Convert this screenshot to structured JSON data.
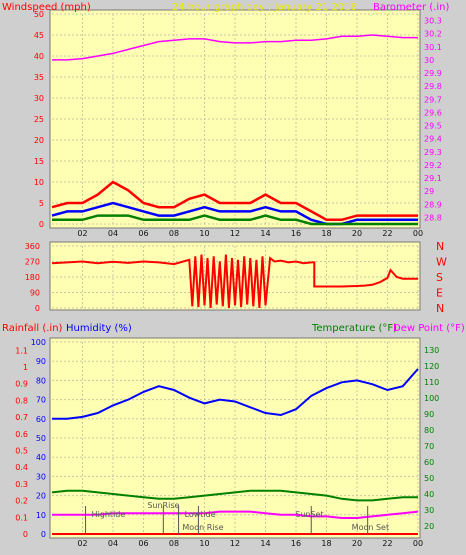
{
  "header": {
    "windspeed_label": "Windspeed (mph)",
    "center_title": "24 hour graph day : January 21 2018",
    "barometer_label": "Barometer (.in)"
  },
  "colors": {
    "panel_bg": "#ffffb4",
    "outer_bg": "#cfcfcf",
    "grid": "#c8c8a0",
    "wind_gust": "#ff0000",
    "wind_avg": "#0000ff",
    "wind_low": "#008000",
    "barometer": "#ff00ff",
    "direction": "#ff0000",
    "humidity": "#0000ff",
    "temperature": "#008000",
    "dew_point": "#ff00ff",
    "rainfall": "#ff0000",
    "events": "#555555",
    "title": "#e8e800"
  },
  "chart_data": [
    {
      "type": "line",
      "name": "wind-barometer",
      "x_ticks": [
        "02",
        "04",
        "06",
        "08",
        "10",
        "12",
        "14",
        "16",
        "18",
        "20",
        "22",
        "00"
      ],
      "left_axis": {
        "label": "Windspeed (mph)",
        "ticks": [
          "0",
          "5",
          "10",
          "15",
          "20",
          "25",
          "30",
          "35",
          "40",
          "45",
          "50"
        ],
        "ylim": [
          0,
          50
        ]
      },
      "right_axis": {
        "label": "Barometer (.in)",
        "ticks": [
          "28.8",
          "28.9",
          "29",
          "29.1",
          "29.2",
          "29.3",
          "29.4",
          "29.5",
          "29.6",
          "29.7",
          "29.8",
          "29.9",
          "30",
          "30.1",
          "30.2",
          "30.3"
        ],
        "ylim": [
          28.75,
          30.35
        ]
      },
      "series": [
        {
          "name": "Barometer",
          "axis": "right",
          "x": [
            0,
            1,
            2,
            3,
            4,
            5,
            6,
            7,
            8,
            9,
            10,
            11,
            12,
            13,
            14,
            15,
            16,
            17,
            18,
            19,
            20,
            21,
            22,
            23,
            24
          ],
          "values": [
            30.0,
            30.0,
            30.01,
            30.03,
            30.05,
            30.08,
            30.11,
            30.14,
            30.15,
            30.16,
            30.16,
            30.14,
            30.13,
            30.13,
            30.14,
            30.14,
            30.15,
            30.15,
            30.16,
            30.18,
            30.18,
            30.19,
            30.18,
            30.17,
            30.17
          ]
        },
        {
          "name": "Wind gust",
          "axis": "left",
          "x": [
            0,
            1,
            2,
            3,
            4,
            5,
            6,
            7,
            8,
            9,
            10,
            11,
            12,
            13,
            14,
            15,
            16,
            17,
            18,
            19,
            20,
            21,
            22,
            23,
            24
          ],
          "values": [
            4,
            5,
            5,
            7,
            10,
            8,
            5,
            4,
            4,
            6,
            7,
            5,
            5,
            5,
            7,
            5,
            5,
            3,
            1,
            1,
            2,
            2,
            2,
            2,
            2
          ]
        },
        {
          "name": "Wind average",
          "axis": "left",
          "x": [
            0,
            1,
            2,
            3,
            4,
            5,
            6,
            7,
            8,
            9,
            10,
            11,
            12,
            13,
            14,
            15,
            16,
            17,
            18,
            19,
            20,
            21,
            22,
            23,
            24
          ],
          "values": [
            2,
            3,
            3,
            4,
            5,
            4,
            3,
            2,
            2,
            3,
            4,
            3,
            3,
            3,
            4,
            3,
            3,
            1,
            0,
            0,
            1,
            1,
            1,
            1,
            1
          ]
        },
        {
          "name": "Wind low",
          "axis": "left",
          "x": [
            0,
            1,
            2,
            3,
            4,
            5,
            6,
            7,
            8,
            9,
            10,
            11,
            12,
            13,
            14,
            15,
            16,
            17,
            18,
            19,
            20,
            21,
            22,
            23,
            24
          ],
          "values": [
            1,
            1,
            1,
            2,
            2,
            2,
            1,
            1,
            1,
            1,
            2,
            1,
            1,
            1,
            2,
            1,
            1,
            0,
            0,
            0,
            0,
            0,
            0,
            0,
            0
          ]
        }
      ]
    },
    {
      "type": "line",
      "name": "wind-direction",
      "left_axis": {
        "ticks": [
          "0",
          "90",
          "180",
          "270",
          "360"
        ],
        "ylim": [
          0,
          360
        ]
      },
      "right_axis": {
        "ticks": [
          "N",
          "E",
          "S",
          "W",
          "N"
        ]
      },
      "series": [
        {
          "name": "Wind direction",
          "x": [
            0,
            1,
            2,
            3,
            4,
            5,
            6,
            7,
            8,
            9,
            9.2,
            9.4,
            9.6,
            9.8,
            10,
            10.2,
            10.4,
            10.6,
            10.8,
            11,
            11.2,
            11.4,
            11.6,
            11.8,
            12,
            12.2,
            12.4,
            12.6,
            12.8,
            13,
            13.2,
            13.4,
            13.6,
            13.8,
            14,
            14.3,
            14.6,
            15,
            15.5,
            16,
            16.5,
            17,
            17.2,
            17.2,
            18,
            19,
            20,
            20.5,
            21,
            21.5,
            22,
            22.2,
            22.6,
            23,
            24
          ],
          "values": [
            260,
            265,
            270,
            260,
            268,
            262,
            270,
            265,
            255,
            280,
            10,
            300,
            5,
            310,
            15,
            290,
            0,
            300,
            20,
            270,
            10,
            310,
            0,
            290,
            15,
            280,
            5,
            300,
            20,
            290,
            10,
            280,
            0,
            300,
            15,
            290,
            270,
            275,
            265,
            270,
            260,
            265,
            265,
            125,
            125,
            125,
            128,
            130,
            135,
            150,
            175,
            220,
            180,
            170,
            170
          ]
        }
      ]
    },
    {
      "type": "line",
      "name": "humidity-temperature",
      "left_outer_axis": {
        "label": "Rainfall (.in)",
        "ticks": [
          "0",
          "0.1",
          "0.2",
          "0.3",
          "0.4",
          "0.5",
          "0.6",
          "0.7",
          "0.8",
          "0.9",
          "1",
          "1.1"
        ],
        "ylim": [
          0,
          1.15
        ]
      },
      "left_inner_axis": {
        "label": "Humidity (%)",
        "ticks": [
          "0",
          "10",
          "20",
          "30",
          "40",
          "50",
          "60",
          "70",
          "80",
          "90",
          "100"
        ],
        "ylim": [
          0,
          100
        ]
      },
      "right_axis": {
        "label": "Temperature (°F)",
        "label2": "Dew Point (°F)",
        "ticks": [
          "20",
          "30",
          "40",
          "50",
          "60",
          "70",
          "80",
          "90",
          "100",
          "110",
          "120",
          "130"
        ],
        "ylim": [
          15,
          135
        ]
      },
      "series": [
        {
          "name": "Humidity",
          "axis": "left_inner",
          "x": [
            0,
            1,
            2,
            3,
            4,
            5,
            6,
            7,
            8,
            9,
            10,
            11,
            12,
            13,
            14,
            15,
            16,
            17,
            18,
            19,
            20,
            21,
            22,
            23,
            24
          ],
          "values": [
            60,
            60,
            61,
            63,
            67,
            70,
            74,
            77,
            75,
            71,
            68,
            70,
            69,
            66,
            63,
            62,
            65,
            72,
            76,
            79,
            80,
            78,
            75,
            77,
            86
          ]
        },
        {
          "name": "Temperature",
          "axis": "right",
          "x": [
            0,
            1,
            2,
            3,
            4,
            5,
            6,
            7,
            8,
            9,
            10,
            11,
            12,
            13,
            14,
            15,
            16,
            17,
            18,
            19,
            20,
            21,
            22,
            23,
            24
          ],
          "values": [
            41,
            42,
            42,
            41,
            40,
            39,
            38,
            37,
            37,
            38,
            39,
            40,
            41,
            42,
            42,
            42,
            41,
            40,
            39,
            37,
            36,
            36,
            37,
            38,
            38
          ]
        },
        {
          "name": "Dew Point",
          "axis": "right",
          "x": [
            0,
            1,
            2,
            3,
            4,
            5,
            6,
            7,
            8,
            9,
            10,
            11,
            12,
            13,
            14,
            15,
            16,
            17,
            18,
            19,
            20,
            21,
            22,
            23,
            24
          ],
          "values": [
            27,
            27,
            27,
            27,
            28,
            28,
            28,
            28,
            28,
            28,
            28,
            29,
            29,
            29,
            28,
            27,
            27,
            26,
            26,
            25,
            25,
            26,
            27,
            28,
            29
          ]
        },
        {
          "name": "Rainfall",
          "axis": "left_outer",
          "x": [
            0,
            24
          ],
          "values": [
            0,
            0
          ]
        }
      ],
      "events": [
        {
          "label": "Hightide",
          "x": 2.2
        },
        {
          "label": "SunRise",
          "x": 7.3
        },
        {
          "label": "Lowtide",
          "x": 8.3
        },
        {
          "label": "Moon Rise",
          "x": 9.6
        },
        {
          "label": "SunSet",
          "x": 17.0
        },
        {
          "label": "Moon Set",
          "x": 20.7
        }
      ]
    }
  ]
}
